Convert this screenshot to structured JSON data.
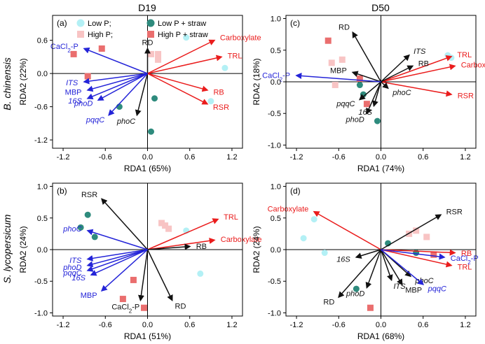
{
  "figure": {
    "col_titles": [
      "D19",
      "D50"
    ],
    "row_titles": [
      "B. chinensis",
      "S. lycopersicum"
    ]
  },
  "colors": {
    "low_p": "#b3f0f5",
    "high_p": "#f8c4c4",
    "low_p_straw": "#2e8b7d",
    "high_p_straw": "#ea6e6e",
    "arrow_red": "#ea1c1c",
    "arrow_blue": "#2424d8",
    "arrow_black": "#111111",
    "axis": "#000000"
  },
  "legend": {
    "entries": [
      {
        "key": "low_p",
        "label": "Low P;",
        "marker": "circle"
      },
      {
        "key": "high_p",
        "label": "High P;",
        "marker": "square"
      },
      {
        "key": "low_p_straw",
        "label": "Low P + straw",
        "marker": "circle"
      },
      {
        "key": "high_p_straw",
        "label": "High P + straw",
        "marker": "square"
      }
    ]
  },
  "chart_data": [
    {
      "type": "scatter",
      "panel": "(a)",
      "title": "D19",
      "row": "B. chinensis",
      "xlabel": "RDA1 (65%)",
      "ylabel": "RDA2 (22%)",
      "xlim": [
        -1.35,
        1.35
      ],
      "ylim": [
        -1.35,
        1.05
      ],
      "xticks": [
        "-1.2",
        "-0.6",
        "0.0",
        "0.6",
        "1.2"
      ],
      "yticks": [
        "0.6",
        "0.0",
        "-0.6",
        "-1.2"
      ],
      "xtick_values": [
        -1.2,
        -0.6,
        0,
        0.6,
        1.2
      ],
      "ytick_values": [
        0.6,
        0,
        -0.6,
        -1.2
      ],
      "show_legend": true,
      "points": [
        {
          "group": "low_p",
          "x": 0.55,
          "y": 0.65
        },
        {
          "group": "low_p",
          "x": 1.1,
          "y": 0.1
        },
        {
          "group": "low_p",
          "x": 0.9,
          "y": -0.5
        },
        {
          "group": "high_p",
          "x": 0.05,
          "y": 0.35
        },
        {
          "group": "high_p",
          "x": 0.15,
          "y": 0.35
        },
        {
          "group": "high_p",
          "x": 0.15,
          "y": 0.25
        },
        {
          "group": "low_p_straw",
          "x": -0.4,
          "y": -0.6
        },
        {
          "group": "low_p_straw",
          "x": 0.1,
          "y": -0.45
        },
        {
          "group": "low_p_straw",
          "x": 0.05,
          "y": -1.05
        },
        {
          "group": "high_p_straw",
          "x": -0.85,
          "y": -0.05
        },
        {
          "group": "high_p_straw",
          "x": -0.65,
          "y": 0.45
        },
        {
          "group": "high_p_straw",
          "x": -1.05,
          "y": 0.35
        }
      ],
      "arrows": [
        {
          "label": "Carboxylate",
          "color": "arrow_red",
          "italic": false,
          "x": 0.95,
          "y": 0.6
        },
        {
          "label": "TRL",
          "color": "arrow_red",
          "italic": false,
          "x": 1.05,
          "y": 0.3
        },
        {
          "label": "RB",
          "color": "arrow_red",
          "italic": false,
          "x": 0.85,
          "y": -0.3
        },
        {
          "label": "RSR",
          "color": "arrow_red",
          "italic": false,
          "x": 0.85,
          "y": -0.55
        },
        {
          "label": "RD",
          "color": "arrow_black",
          "italic": false,
          "x": 0.0,
          "y": 0.45
        },
        {
          "label": "phoC",
          "color": "arrow_black",
          "italic": true,
          "x": -0.15,
          "y": -0.75
        },
        {
          "label": "CaCl2-P",
          "color": "arrow_blue",
          "italic": false,
          "x": -0.9,
          "y": 0.45
        },
        {
          "label": "ITS",
          "color": "arrow_blue",
          "italic": true,
          "x": -0.9,
          "y": -0.15
        },
        {
          "label": "MBP",
          "color": "arrow_blue",
          "italic": false,
          "x": -0.85,
          "y": -0.3
        },
        {
          "label": "16S",
          "color": "arrow_blue",
          "italic": true,
          "x": -0.85,
          "y": -0.45
        },
        {
          "label": "phoD",
          "color": "arrow_blue",
          "italic": true,
          "x": -0.7,
          "y": -0.48
        },
        {
          "label": "pqqC",
          "color": "arrow_blue",
          "italic": true,
          "x": -0.55,
          "y": -0.75
        }
      ]
    },
    {
      "type": "scatter",
      "panel": "(c)",
      "title": "D50",
      "row": "B. chinensis",
      "xlabel": "RDA1 (74%)",
      "ylabel": "RDA2 (18%)",
      "xlim": [
        -1.35,
        1.35
      ],
      "ylim": [
        -1.05,
        1.05
      ],
      "xticks": [
        "-1.2",
        "-0.6",
        "0.0",
        "0.6",
        "1.2"
      ],
      "yticks": [
        "1.0",
        "0.5",
        "0.0",
        "-0.5",
        "-1.0"
      ],
      "xtick_values": [
        -1.2,
        -0.6,
        0,
        0.6,
        1.2
      ],
      "ytick_values": [
        1.0,
        0.5,
        0,
        -0.5,
        -1.0
      ],
      "show_legend": false,
      "points": [
        {
          "group": "low_p",
          "x": 0.95,
          "y": 0.42
        },
        {
          "group": "low_p",
          "x": 1.0,
          "y": 0.38
        },
        {
          "group": "high_p",
          "x": -0.7,
          "y": 0.3
        },
        {
          "group": "high_p",
          "x": -0.65,
          "y": -0.05
        },
        {
          "group": "high_p",
          "x": -0.55,
          "y": 0.35
        },
        {
          "group": "low_p_straw",
          "x": -0.3,
          "y": -0.05
        },
        {
          "group": "low_p_straw",
          "x": -0.25,
          "y": -0.2
        },
        {
          "group": "low_p_straw",
          "x": -0.05,
          "y": -0.62
        },
        {
          "group": "high_p_straw",
          "x": -0.75,
          "y": 0.65
        },
        {
          "group": "high_p_straw",
          "x": -0.3,
          "y": 0.05
        },
        {
          "group": "high_p_straw",
          "x": -0.2,
          "y": -0.35
        }
      ],
      "arrows": [
        {
          "label": "TRL",
          "color": "arrow_red",
          "italic": false,
          "x": 1.0,
          "y": 0.4
        },
        {
          "label": "Carboxylate",
          "color": "arrow_red",
          "italic": false,
          "x": 1.05,
          "y": 0.25
        },
        {
          "label": "RSR",
          "color": "arrow_red",
          "italic": false,
          "x": 1.0,
          "y": -0.2
        },
        {
          "label": "RD",
          "color": "arrow_black",
          "italic": false,
          "x": -0.4,
          "y": 0.78
        },
        {
          "label": "ITS",
          "color": "arrow_black",
          "italic": true,
          "x": 0.4,
          "y": 0.42
        },
        {
          "label": "RB",
          "color": "arrow_black",
          "italic": false,
          "x": 0.45,
          "y": 0.25
        },
        {
          "label": "MBP",
          "color": "arrow_black",
          "italic": false,
          "x": -0.4,
          "y": 0.15
        },
        {
          "label": "phoC",
          "color": "arrow_black",
          "italic": true,
          "x": 0.1,
          "y": -0.1
        },
        {
          "label": "pqqC",
          "color": "arrow_black",
          "italic": true,
          "x": -0.3,
          "y": -0.28
        },
        {
          "label": "16S",
          "color": "arrow_black",
          "italic": true,
          "x": -0.1,
          "y": -0.38
        },
        {
          "label": "phoD",
          "color": "arrow_black",
          "italic": true,
          "x": -0.2,
          "y": -0.5
        },
        {
          "label": "CaCl2-P",
          "color": "arrow_blue",
          "italic": false,
          "x": -1.2,
          "y": 0.1
        }
      ]
    },
    {
      "type": "scatter",
      "panel": "(b)",
      "title": "D19",
      "row": "S. lycopersicum",
      "xlabel": "RDA1 (51%)",
      "ylabel": "RDA2 (24%)",
      "xlim": [
        -1.35,
        1.35
      ],
      "ylim": [
        -1.05,
        1.05
      ],
      "xticks": [
        "-1.2",
        "-0.6",
        "0.0",
        "0.6",
        "1.2"
      ],
      "yticks": [
        "1.0",
        "0.5",
        "0.0",
        "-0.5",
        "-1.0"
      ],
      "xtick_values": [
        -1.2,
        -0.6,
        0,
        0.6,
        1.2
      ],
      "ytick_values": [
        1.0,
        0.5,
        0,
        -0.5,
        -1.0
      ],
      "show_legend": false,
      "points": [
        {
          "group": "low_p",
          "x": 0.55,
          "y": 0.3
        },
        {
          "group": "low_p",
          "x": 0.75,
          "y": -0.38
        },
        {
          "group": "high_p",
          "x": 0.25,
          "y": 0.38
        },
        {
          "group": "high_p",
          "x": 0.3,
          "y": 0.33
        },
        {
          "group": "high_p",
          "x": 0.2,
          "y": 0.42
        },
        {
          "group": "low_p_straw",
          "x": -0.85,
          "y": 0.55
        },
        {
          "group": "low_p_straw",
          "x": -0.95,
          "y": 0.35
        },
        {
          "group": "low_p_straw",
          "x": -0.75,
          "y": 0.2
        },
        {
          "group": "high_p_straw",
          "x": -0.2,
          "y": -0.48
        },
        {
          "group": "high_p_straw",
          "x": -0.35,
          "y": -0.78
        },
        {
          "group": "high_p_straw",
          "x": -0.05,
          "y": -0.92
        }
      ],
      "arrows": [
        {
          "label": "TRL",
          "color": "arrow_red",
          "italic": false,
          "x": 1.0,
          "y": 0.48
        },
        {
          "label": "Carboxylate",
          "color": "arrow_red",
          "italic": false,
          "x": 0.95,
          "y": 0.15
        },
        {
          "label": "RB",
          "color": "arrow_black",
          "italic": false,
          "x": 0.6,
          "y": 0.05
        },
        {
          "label": "RSR",
          "color": "arrow_black",
          "italic": false,
          "x": -0.65,
          "y": 0.8
        },
        {
          "label": "RD",
          "color": "arrow_black",
          "italic": false,
          "x": 0.35,
          "y": -0.8
        },
        {
          "label": "CaCl2-P",
          "color": "arrow_black",
          "italic": false,
          "x": -0.1,
          "y": -0.8
        },
        {
          "label": "phoC",
          "color": "arrow_blue",
          "italic": true,
          "x": -0.85,
          "y": 0.3
        },
        {
          "label": "ITS",
          "color": "arrow_blue",
          "italic": true,
          "x": -0.85,
          "y": -0.15
        },
        {
          "label": "phoD",
          "color": "arrow_blue",
          "italic": true,
          "x": -0.85,
          "y": -0.25
        },
        {
          "label": "pqqC",
          "color": "arrow_blue",
          "italic": true,
          "x": -0.85,
          "y": -0.33
        },
        {
          "label": "16S",
          "color": "arrow_blue",
          "italic": true,
          "x": -0.8,
          "y": -0.4
        },
        {
          "label": "MBP",
          "color": "arrow_blue",
          "italic": false,
          "x": -0.65,
          "y": -0.65
        }
      ]
    },
    {
      "type": "scatter",
      "panel": "(d)",
      "title": "D50",
      "row": "S. lycopersicum",
      "xlabel": "RDA1 (68%)",
      "ylabel": "RDA2 (24%)",
      "xlim": [
        -1.35,
        1.35
      ],
      "ylim": [
        -1.05,
        1.05
      ],
      "xticks": [
        "-1.2",
        "-0.6",
        "0.0",
        "0.6",
        "1.2"
      ],
      "yticks": [
        "1.0",
        "0.5",
        "0.0",
        "-0.5",
        "-1.0"
      ],
      "xtick_values": [
        -1.2,
        -0.6,
        0,
        0.6,
        1.2
      ],
      "ytick_values": [
        1.0,
        0.5,
        0,
        -0.5,
        -1.0
      ],
      "show_legend": false,
      "points": [
        {
          "group": "low_p",
          "x": -0.95,
          "y": 0.48
        },
        {
          "group": "low_p",
          "x": -1.1,
          "y": 0.18
        },
        {
          "group": "low_p",
          "x": -0.8,
          "y": -0.05
        },
        {
          "group": "high_p",
          "x": 0.4,
          "y": 0.25
        },
        {
          "group": "high_p",
          "x": 0.5,
          "y": 0.3
        },
        {
          "group": "high_p",
          "x": 0.65,
          "y": 0.2
        },
        {
          "group": "low_p_straw",
          "x": 0.1,
          "y": 0.1
        },
        {
          "group": "low_p_straw",
          "x": 0.5,
          "y": -0.05
        },
        {
          "group": "low_p_straw",
          "x": -0.35,
          "y": -0.62
        },
        {
          "group": "high_p_straw",
          "x": 0.75,
          "y": -0.08
        },
        {
          "group": "high_p_straw",
          "x": -0.15,
          "y": -0.92
        }
      ],
      "arrows": [
        {
          "label": "Carboxylate",
          "color": "arrow_red",
          "italic": false,
          "x": -0.95,
          "y": 0.6
        },
        {
          "label": "RB",
          "color": "arrow_red",
          "italic": false,
          "x": 1.05,
          "y": -0.05
        },
        {
          "label": "TRL",
          "color": "arrow_red",
          "italic": false,
          "x": 1.0,
          "y": -0.25
        },
        {
          "label": "RSR",
          "color": "arrow_black",
          "italic": false,
          "x": 0.85,
          "y": 0.55
        },
        {
          "label": "16S",
          "color": "arrow_black",
          "italic": true,
          "x": -0.35,
          "y": -0.12
        },
        {
          "label": "RD",
          "color": "arrow_black",
          "italic": false,
          "x": -0.6,
          "y": -0.75
        },
        {
          "label": "phoD",
          "color": "arrow_black",
          "italic": true,
          "x": -0.2,
          "y": -0.6
        },
        {
          "label": "ITS",
          "color": "arrow_black",
          "italic": true,
          "x": 0.15,
          "y": -0.48
        },
        {
          "label": "MBP",
          "color": "arrow_black",
          "italic": false,
          "x": 0.3,
          "y": -0.55
        },
        {
          "label": "phoC",
          "color": "arrow_black",
          "italic": true,
          "x": 0.42,
          "y": -0.42
        },
        {
          "label": "CaCl2-P",
          "color": "arrow_blue",
          "italic": false,
          "x": 0.9,
          "y": -0.12
        },
        {
          "label": "pqqC",
          "color": "arrow_blue",
          "italic": true,
          "x": 0.6,
          "y": -0.55
        }
      ]
    }
  ]
}
